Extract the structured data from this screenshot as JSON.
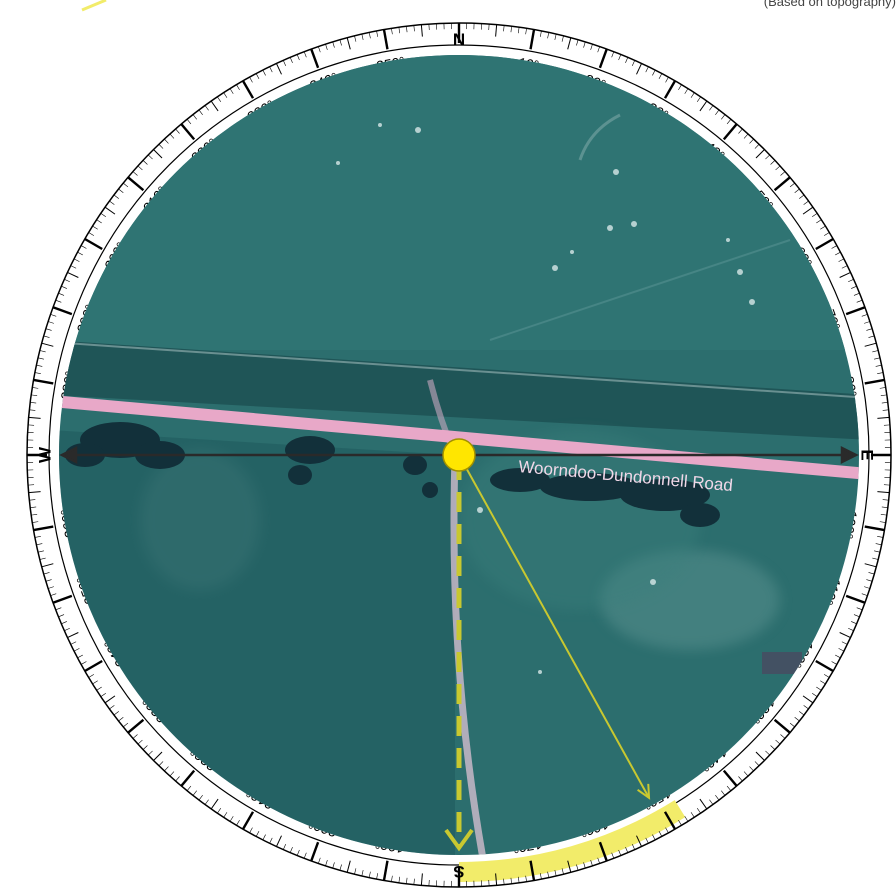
{
  "caption": "(Based on topography)",
  "road_label": "Woorndoo-Dundonnell Road",
  "cardinals": {
    "north": "N",
    "east": "E",
    "south": "S",
    "west": "W"
  },
  "degree_labels": [
    "10°",
    "20°",
    "30°",
    "40°",
    "50°",
    "60°",
    "70°",
    "80°",
    "100°",
    "110°",
    "120°",
    "130°",
    "140°",
    "150°",
    "160°",
    "170°",
    "190°",
    "200°",
    "210°",
    "220°",
    "230°",
    "240°",
    "250°",
    "260°",
    "280°",
    "290°",
    "300°",
    "310°",
    "320°",
    "330°",
    "340°",
    "350°"
  ],
  "bearing_arrow": {
    "bearing_deg": 151,
    "length_fraction": 0.98
  },
  "highlight_arc": {
    "from_deg": 148,
    "to_deg": 180
  },
  "colors": {
    "map_base": "#2c6e6e",
    "field_dark": "#245f60",
    "road": "#e8a8c8",
    "highlight": "#f2ec6a",
    "marker": "#ffe600",
    "arrow": "#c8c830",
    "axis": "#2a2a2a"
  }
}
